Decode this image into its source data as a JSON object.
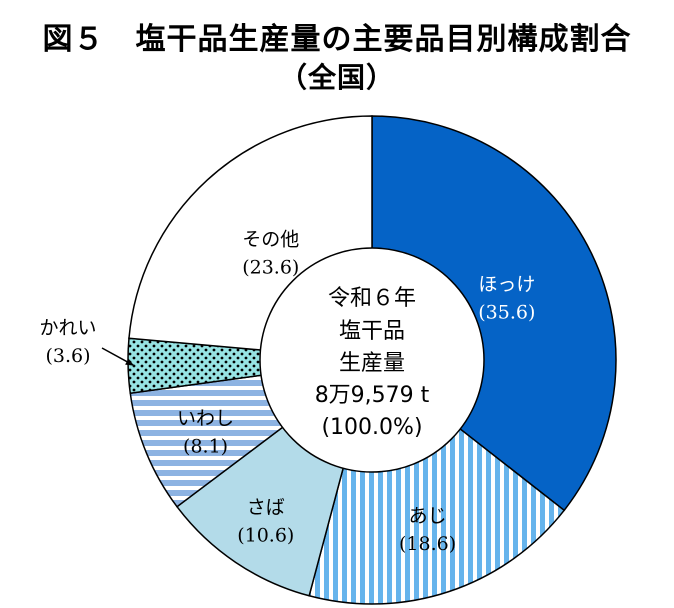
{
  "chart_data": {
    "type": "pie",
    "style": "donut",
    "title": "図５　塩干品生産量の主要品目別構成割合",
    "subtitle": "（全国）",
    "unit": "%",
    "center_label": [
      "令和６年",
      "塩干品",
      "生産量",
      "8万9,579 t",
      "(100.0%)"
    ],
    "slices": [
      {
        "name": "ほっけ",
        "value": 35.6,
        "value_label": "(35.6)",
        "color": "#0563c6",
        "pattern": "solid"
      },
      {
        "name": "あじ",
        "value": 18.6,
        "value_label": "(18.6)",
        "color": "#66b4ec",
        "pattern": "vertical-stripes"
      },
      {
        "name": "さば",
        "value": 10.6,
        "value_label": "(10.6)",
        "color": "#b3dbe9",
        "pattern": "solid"
      },
      {
        "name": "いわし",
        "value": 8.1,
        "value_label": "(8.1)",
        "color": "#8db3e2",
        "pattern": "horizontal-stripes"
      },
      {
        "name": "かれい",
        "value": 3.6,
        "value_label": "(3.6)",
        "color": "#97e3e3",
        "pattern": "dots"
      },
      {
        "name": "その他",
        "value": 23.6,
        "value_label": "(23.6)",
        "color": "#ffffff",
        "pattern": "solid"
      }
    ]
  }
}
